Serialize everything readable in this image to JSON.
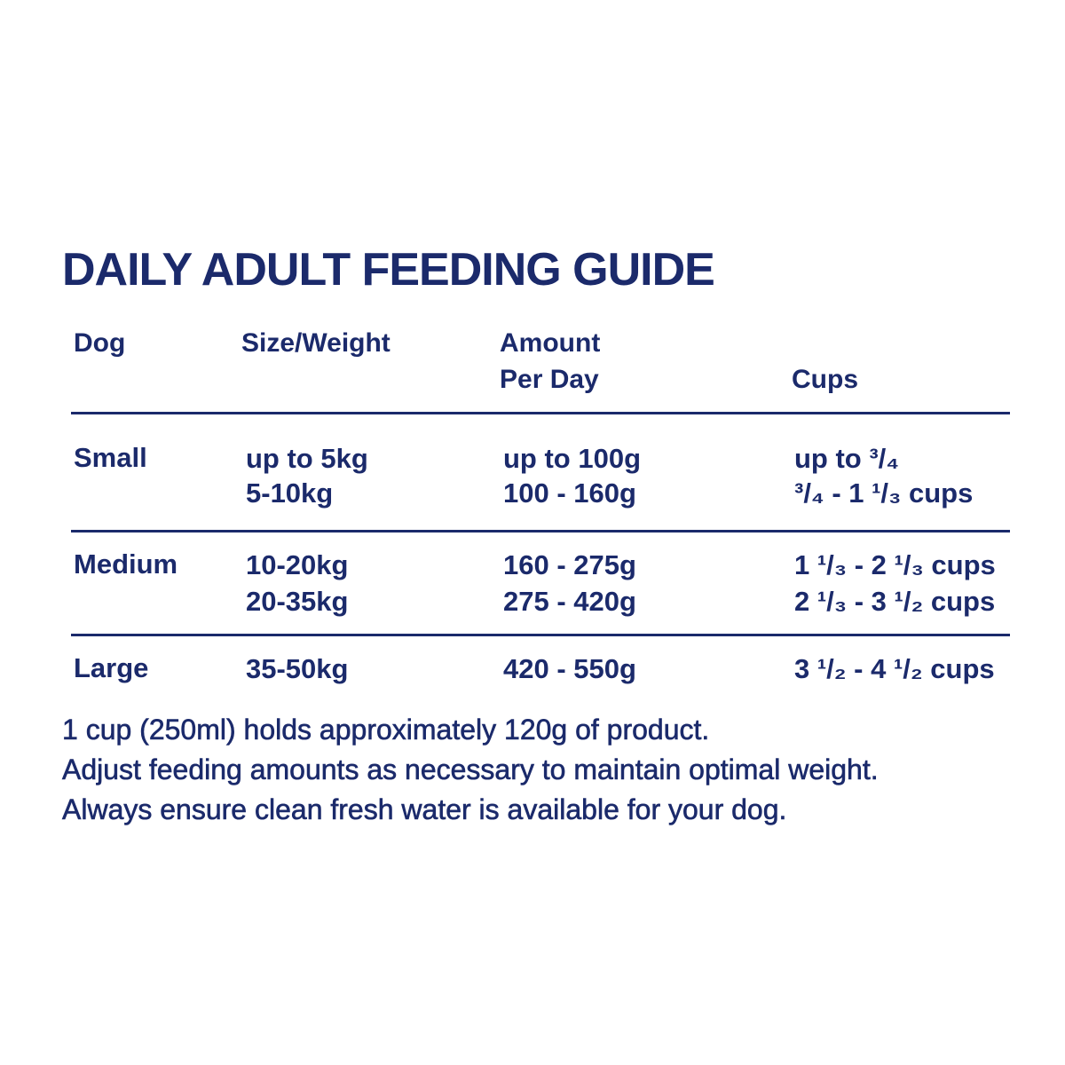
{
  "title": "DAILY ADULT FEEDING GUIDE",
  "table": {
    "headers": {
      "dog": "Dog",
      "size": "Size/Weight",
      "amount_line1": "Amount",
      "amount_line2": "Per Day",
      "cups": "Cups"
    },
    "groups": [
      {
        "dog": "Small",
        "rows": [
          {
            "size": "up to 5kg",
            "amount": "up to 100g",
            "cups": "up to ³/₄"
          },
          {
            "size": "5-10kg",
            "amount": "100 - 160g",
            "cups": "³/₄ - 1 ¹/₃ cups"
          }
        ]
      },
      {
        "dog": "Medium",
        "rows": [
          {
            "size": "10-20kg",
            "amount": "160 - 275g",
            "cups": "1 ¹/₃ - 2 ¹/₃ cups"
          },
          {
            "size": "20-35kg",
            "amount": "275 - 420g",
            "cups": "2 ¹/₃ - 3 ¹/₂ cups"
          }
        ]
      },
      {
        "dog": "Large",
        "rows": [
          {
            "size": "35-50kg",
            "amount": "420 - 550g",
            "cups": "3 ¹/₂ - 4 ¹/₂ cups"
          }
        ]
      }
    ]
  },
  "notes": [
    "1 cup (250ml) holds approximately 120g of product.",
    "Adjust feeding amounts as necessary to maintain optimal weight.",
    "Always ensure clean fresh water is available for your dog."
  ],
  "colors": {
    "text": "#1b2a6b",
    "background": "#ffffff"
  }
}
